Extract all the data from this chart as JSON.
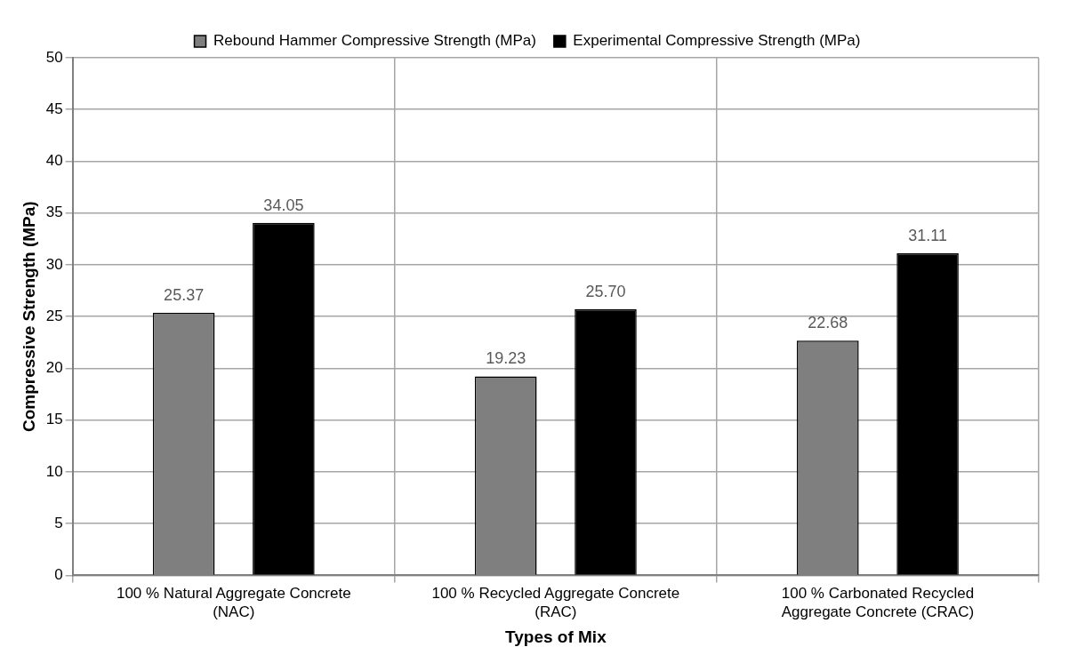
{
  "chart_data": {
    "type": "bar",
    "xlabel": "Types of Mix",
    "ylabel": "Compressive Strength (MPa)",
    "categories": [
      "100 % Natural Aggregate Concrete (NAC)",
      "100 % Recycled Aggregate Concrete (RAC)",
      "100 % Carbonated Recycled Aggregate Concrete (CRAC)"
    ],
    "series": [
      {
        "name": "Rebound Hammer Compressive Strength (MPa)",
        "color": "#7f7f7f",
        "values": [
          25.37,
          19.23,
          22.68
        ],
        "value_labels": [
          "25.37",
          "19.23",
          "22.68"
        ]
      },
      {
        "name": "Experimental Compressive Strength (MPa)",
        "color": "#000000",
        "values": [
          34.05,
          25.7,
          31.11
        ],
        "value_labels": [
          "34.05",
          "25.70",
          "31.11"
        ]
      }
    ],
    "ylim": [
      0,
      50
    ],
    "yticks": [
      0,
      5,
      10,
      15,
      20,
      25,
      30,
      35,
      40,
      45,
      50
    ],
    "grid": true,
    "legend": "top"
  }
}
